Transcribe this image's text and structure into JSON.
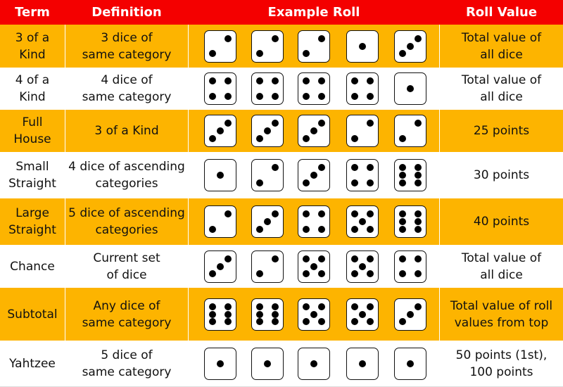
{
  "header": {
    "term": "Term",
    "definition": "Definition",
    "example": "Example Roll",
    "value": "Roll Value"
  },
  "rows": [
    {
      "term": [
        "3 of a",
        "Kind"
      ],
      "definition": [
        "3 dice of",
        "same category"
      ],
      "dice": [
        2,
        2,
        2,
        1,
        3
      ],
      "value": [
        "Total value of",
        "all dice"
      ]
    },
    {
      "term": [
        "4 of a",
        "Kind"
      ],
      "definition": [
        "4 dice of",
        "same category"
      ],
      "dice": [
        4,
        4,
        4,
        4,
        1
      ],
      "value": [
        "Total value of",
        "all dice"
      ]
    },
    {
      "term": [
        "Full",
        "House"
      ],
      "definition": [
        "3 of a Kind"
      ],
      "dice": [
        3,
        3,
        3,
        2,
        2
      ],
      "value": [
        "25 points"
      ]
    },
    {
      "term": [
        "Small",
        "Straight"
      ],
      "definition": [
        "4 dice of ascending",
        "categories"
      ],
      "dice": [
        1,
        2,
        3,
        4,
        6
      ],
      "value": [
        "30 points"
      ]
    },
    {
      "term": [
        "Large",
        "Straight"
      ],
      "definition": [
        "5 dice of ascending",
        "categories"
      ],
      "dice": [
        2,
        3,
        4,
        5,
        6
      ],
      "value": [
        "40 points"
      ]
    },
    {
      "term": [
        "Chance"
      ],
      "definition": [
        "Current set",
        "of dice"
      ],
      "dice": [
        3,
        2,
        5,
        5,
        4
      ],
      "value": [
        "Total value of",
        "all dice"
      ]
    },
    {
      "term": [
        "Subtotal"
      ],
      "definition": [
        "Any dice of",
        "same category"
      ],
      "dice": [
        6,
        6,
        5,
        5,
        3
      ],
      "value": [
        "Total value of roll",
        "values from top"
      ]
    },
    {
      "term": [
        "Yahtzee"
      ],
      "definition": [
        "5 dice of",
        "same category"
      ],
      "dice": [
        1,
        1,
        1,
        1,
        1
      ],
      "value": [
        "50 points (1st),",
        "100 points"
      ]
    }
  ],
  "colors": {
    "header": "#f40000",
    "band": "#fdb400",
    "white": "#ffffff"
  }
}
